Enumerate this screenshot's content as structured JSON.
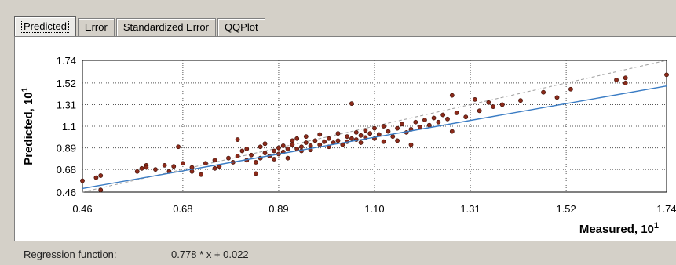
{
  "tabs": [
    {
      "label": "Predicted",
      "active": true
    },
    {
      "label": "Error",
      "active": false
    },
    {
      "label": "Standardized Error",
      "active": false
    },
    {
      "label": "QQPlot",
      "active": false
    }
  ],
  "status": {
    "label": "Regression function:",
    "value": "0.778 * x + 0.022"
  },
  "chart_data": {
    "type": "scatter",
    "xlabel": "Measured, 10",
    "xlabel_superscript": "1",
    "ylabel": "Predicted, 10",
    "ylabel_superscript": "1",
    "xlim": [
      0.46,
      1.74
    ],
    "ylim": [
      0.46,
      1.74
    ],
    "xticks": [
      "0.46",
      "0.68",
      "0.89",
      "1.10",
      "1.31",
      "1.52",
      "1.74"
    ],
    "yticks": [
      "1.74",
      "1.52",
      "1.31",
      "1.1",
      "0.89",
      "0.68",
      "0.46"
    ],
    "grid": true,
    "colors": {
      "points": "#8b2a1a",
      "regression": "#3a7cc4",
      "reference": "#a0a0a0"
    },
    "regression_line": {
      "slope": 0.778,
      "intercept": 0.022
    },
    "reference_line": {
      "x": [
        0.46,
        1.74
      ],
      "y": [
        0.46,
        1.74
      ]
    },
    "points": [
      [
        0.46,
        0.57
      ],
      [
        0.49,
        0.6
      ],
      [
        0.5,
        0.62
      ],
      [
        0.5,
        0.48
      ],
      [
        0.58,
        0.66
      ],
      [
        0.59,
        0.69
      ],
      [
        0.6,
        0.72
      ],
      [
        0.6,
        0.7
      ],
      [
        0.62,
        0.68
      ],
      [
        0.64,
        0.72
      ],
      [
        0.65,
        0.66
      ],
      [
        0.66,
        0.71
      ],
      [
        0.67,
        0.9
      ],
      [
        0.68,
        0.74
      ],
      [
        0.7,
        0.7
      ],
      [
        0.7,
        0.66
      ],
      [
        0.72,
        0.63
      ],
      [
        0.73,
        0.74
      ],
      [
        0.75,
        0.77
      ],
      [
        0.75,
        0.69
      ],
      [
        0.76,
        0.71
      ],
      [
        0.78,
        0.79
      ],
      [
        0.79,
        0.75
      ],
      [
        0.8,
        0.81
      ],
      [
        0.8,
        0.97
      ],
      [
        0.81,
        0.86
      ],
      [
        0.82,
        0.88
      ],
      [
        0.82,
        0.77
      ],
      [
        0.83,
        0.82
      ],
      [
        0.84,
        0.75
      ],
      [
        0.84,
        0.64
      ],
      [
        0.85,
        0.9
      ],
      [
        0.85,
        0.79
      ],
      [
        0.86,
        0.84
      ],
      [
        0.86,
        0.93
      ],
      [
        0.87,
        0.81
      ],
      [
        0.88,
        0.86
      ],
      [
        0.88,
        0.78
      ],
      [
        0.89,
        0.89
      ],
      [
        0.89,
        0.83
      ],
      [
        0.9,
        0.91
      ],
      [
        0.9,
        0.85
      ],
      [
        0.91,
        0.88
      ],
      [
        0.91,
        0.79
      ],
      [
        0.92,
        0.96
      ],
      [
        0.92,
        0.92
      ],
      [
        0.93,
        0.88
      ],
      [
        0.93,
        0.98
      ],
      [
        0.94,
        0.9
      ],
      [
        0.94,
        0.86
      ],
      [
        0.95,
        0.94
      ],
      [
        0.95,
        1.0
      ],
      [
        0.96,
        0.91
      ],
      [
        0.96,
        0.87
      ],
      [
        0.97,
        0.96
      ],
      [
        0.98,
        0.92
      ],
      [
        0.98,
        1.02
      ],
      [
        0.99,
        0.95
      ],
      [
        1.0,
        0.9
      ],
      [
        1.0,
        0.98
      ],
      [
        1.01,
        0.94
      ],
      [
        1.02,
        1.03
      ],
      [
        1.02,
        0.96
      ],
      [
        1.03,
        0.92
      ],
      [
        1.04,
        1.0
      ],
      [
        1.04,
        0.95
      ],
      [
        1.05,
        0.98
      ],
      [
        1.05,
        1.32
      ],
      [
        1.06,
        1.04
      ],
      [
        1.06,
        0.97
      ],
      [
        1.07,
        0.94
      ],
      [
        1.07,
        1.01
      ],
      [
        1.08,
        0.99
      ],
      [
        1.08,
        1.06
      ],
      [
        1.09,
        1.03
      ],
      [
        1.1,
        0.98
      ],
      [
        1.1,
        1.08
      ],
      [
        1.11,
        1.02
      ],
      [
        1.12,
        0.95
      ],
      [
        1.12,
        1.1
      ],
      [
        1.13,
        1.05
      ],
      [
        1.14,
        1.0
      ],
      [
        1.15,
        1.08
      ],
      [
        1.15,
        0.96
      ],
      [
        1.16,
        1.12
      ],
      [
        1.17,
        1.04
      ],
      [
        1.18,
        1.07
      ],
      [
        1.18,
        0.92
      ],
      [
        1.19,
        1.14
      ],
      [
        1.2,
        1.09
      ],
      [
        1.21,
        1.16
      ],
      [
        1.22,
        1.11
      ],
      [
        1.23,
        1.18
      ],
      [
        1.24,
        1.14
      ],
      [
        1.25,
        1.21
      ],
      [
        1.26,
        1.17
      ],
      [
        1.27,
        1.05
      ],
      [
        1.27,
        1.4
      ],
      [
        1.28,
        1.23
      ],
      [
        1.3,
        1.19
      ],
      [
        1.32,
        1.36
      ],
      [
        1.33,
        1.25
      ],
      [
        1.35,
        1.33
      ],
      [
        1.36,
        1.29
      ],
      [
        1.38,
        1.31
      ],
      [
        1.42,
        1.35
      ],
      [
        1.47,
        1.43
      ],
      [
        1.5,
        1.38
      ],
      [
        1.53,
        1.46
      ],
      [
        1.63,
        1.55
      ],
      [
        1.65,
        1.52
      ],
      [
        1.65,
        1.57
      ],
      [
        1.74,
        1.6
      ]
    ]
  }
}
